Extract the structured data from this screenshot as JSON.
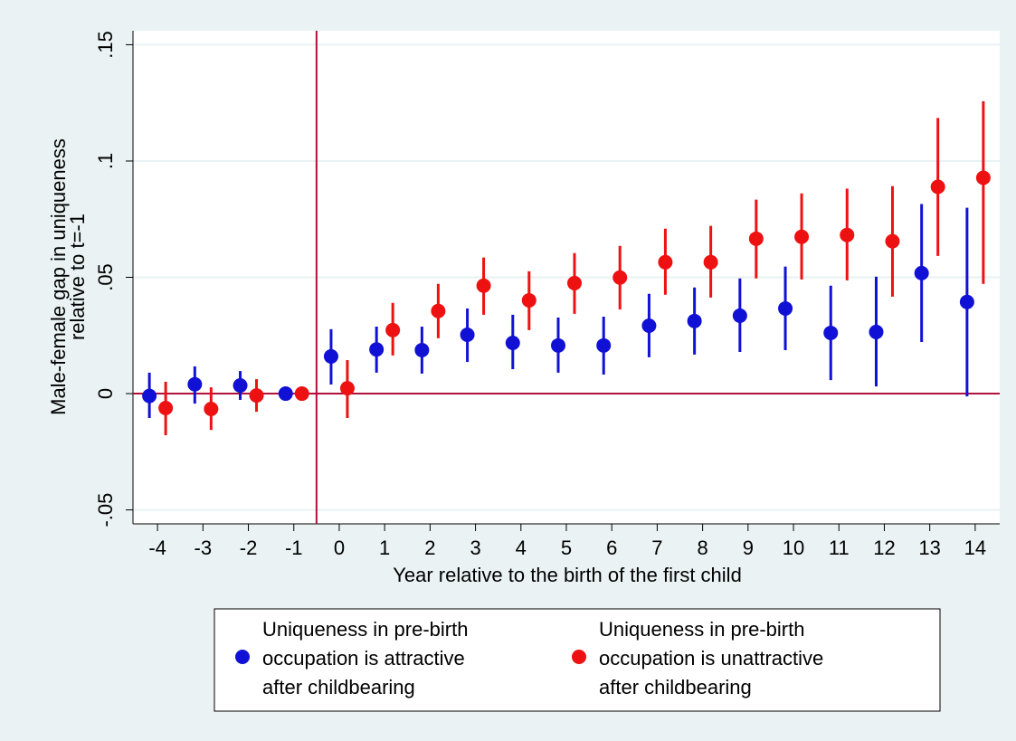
{
  "chart_data": {
    "type": "errorbar",
    "xlabel": "Year relative to the birth of the first child",
    "ylabel": "Male-female gap in uniqueness\nrelative to t=-1",
    "x": [
      -4,
      -3,
      -2,
      -1,
      0,
      1,
      2,
      3,
      4,
      5,
      6,
      7,
      8,
      9,
      10,
      11,
      12,
      13,
      14
    ],
    "xlim": [
      -4.54,
      14.54
    ],
    "xticks": [
      -4,
      -3,
      -2,
      -1,
      0,
      1,
      2,
      3,
      4,
      5,
      6,
      7,
      8,
      9,
      10,
      11,
      12,
      13,
      14
    ],
    "ylim": [
      -0.056,
      0.156
    ],
    "yticks": [
      {
        "value": -0.05,
        "label": "-.05"
      },
      0,
      {
        "value": 0.05,
        "label": ".05"
      },
      {
        "value": 0.1,
        "label": ".1"
      },
      {
        "value": 0.15,
        "label": ".15"
      }
    ],
    "grid": true,
    "xline": -0.5,
    "yline": 0,
    "refline_color": "#b0103a",
    "series": [
      {
        "name": "Uniqueness in pre-birth\noccupation is attractive\nafter childbearing",
        "color": "#1111d6",
        "values": [
          -0.001,
          0.004,
          0.0035,
          0,
          0.016,
          0.019,
          0.0187,
          0.0253,
          0.0218,
          0.0207,
          0.0207,
          0.0292,
          0.0312,
          0.0335,
          0.0366,
          0.0261,
          0.0265,
          0.0518,
          0.0394
        ],
        "lower": [
          -0.0105,
          -0.0043,
          -0.0027,
          0,
          0.0039,
          0.009,
          0.0086,
          0.0136,
          0.0105,
          0.009,
          0.0082,
          0.0156,
          0.0168,
          0.0179,
          0.0187,
          0.0058,
          0.0031,
          0.0222,
          -0.0012
        ],
        "upper": [
          0.009,
          0.0117,
          0.0097,
          0,
          0.0277,
          0.0288,
          0.0288,
          0.0366,
          0.0339,
          0.0327,
          0.0331,
          0.0429,
          0.0456,
          0.0495,
          0.0546,
          0.0464,
          0.0503,
          0.0815,
          0.0799
        ]
      },
      {
        "name": "Uniqueness in pre-birth\noccupation is unattractive\nafter childbearing",
        "color": "#ee1111",
        "values": [
          -0.0062,
          -0.0066,
          -0.0008,
          0,
          0.0023,
          0.0273,
          0.0355,
          0.0464,
          0.0401,
          0.0475,
          0.0499,
          0.0565,
          0.0565,
          0.0666,
          0.0674,
          0.0682,
          0.0655,
          0.0889,
          0.0928
        ],
        "lower": [
          -0.0179,
          -0.0156,
          -0.0078,
          0,
          -0.0105,
          0.0164,
          0.0238,
          0.0339,
          0.0273,
          0.0343,
          0.0362,
          0.0425,
          0.0413,
          0.0495,
          0.0491,
          0.0487,
          0.0417,
          0.0592,
          0.0472
        ],
        "upper": [
          0.0051,
          0.0027,
          0.0062,
          0,
          0.0144,
          0.039,
          0.0472,
          0.0585,
          0.0526,
          0.0604,
          0.0635,
          0.0709,
          0.0721,
          0.0834,
          0.0861,
          0.0881,
          0.0892,
          0.1185,
          0.1257
        ]
      }
    ]
  }
}
